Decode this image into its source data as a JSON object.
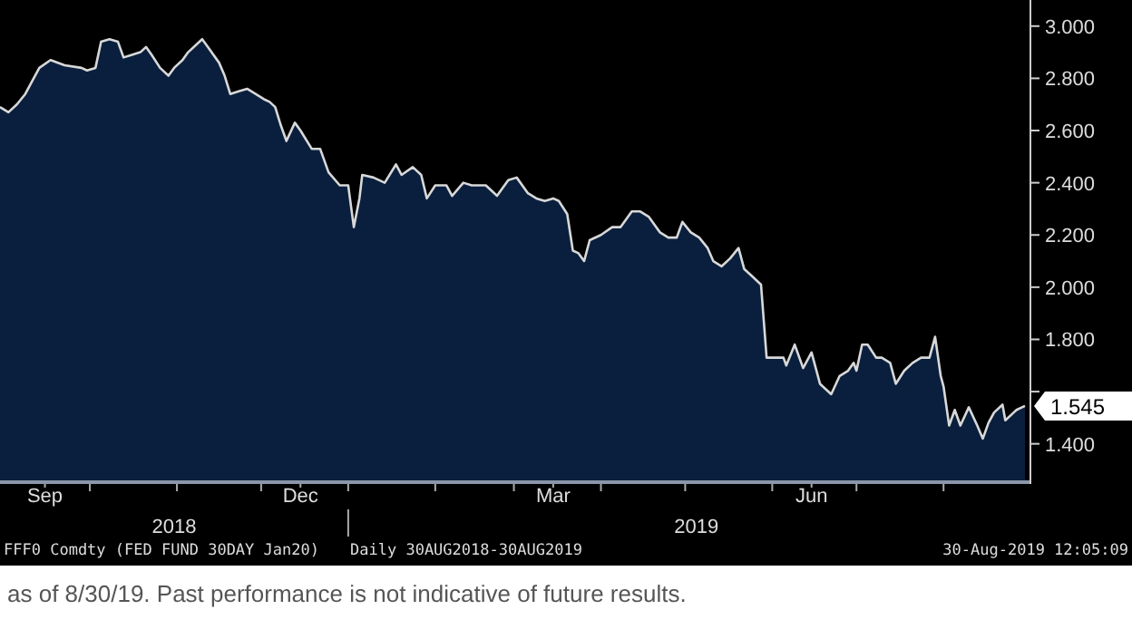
{
  "chart_data": {
    "type": "area",
    "x": [
      "2018-08-30",
      "2018-09-02",
      "2018-09-05",
      "2018-09-08",
      "2018-09-10",
      "2018-09-13",
      "2018-09-17",
      "2018-09-22",
      "2018-09-28",
      "2018-09-30",
      "2018-10-03",
      "2018-10-05",
      "2018-10-08",
      "2018-10-11",
      "2018-10-13",
      "2018-10-16",
      "2018-10-19",
      "2018-10-21",
      "2018-10-23",
      "2018-10-26",
      "2018-10-29",
      "2018-10-31",
      "2018-11-03",
      "2018-11-05",
      "2018-11-08",
      "2018-11-10",
      "2018-11-12",
      "2018-11-16",
      "2018-11-18",
      "2018-11-20",
      "2018-11-23",
      "2018-11-26",
      "2018-11-29",
      "2018-12-02",
      "2018-12-04",
      "2018-12-06",
      "2018-12-08",
      "2018-12-10",
      "2018-12-13",
      "2018-12-15",
      "2018-12-19",
      "2018-12-22",
      "2018-12-25",
      "2018-12-29",
      "2019-01-01",
      "2019-01-03",
      "2019-01-05",
      "2019-01-06",
      "2019-01-10",
      "2019-01-14",
      "2019-01-18",
      "2019-01-20",
      "2019-01-24",
      "2019-01-27",
      "2019-01-29",
      "2019-02-01",
      "2019-02-05",
      "2019-02-07",
      "2019-02-11",
      "2019-02-14",
      "2019-02-19",
      "2019-02-23",
      "2019-02-27",
      "2019-03-02",
      "2019-03-06",
      "2019-03-09",
      "2019-03-12",
      "2019-03-15",
      "2019-03-17",
      "2019-03-20",
      "2019-03-22",
      "2019-03-24",
      "2019-03-26",
      "2019-03-28",
      "2019-04-01",
      "2019-04-05",
      "2019-04-08",
      "2019-04-12",
      "2019-04-15",
      "2019-04-18",
      "2019-04-22",
      "2019-04-25",
      "2019-04-28",
      "2019-04-30",
      "2019-05-03",
      "2019-05-06",
      "2019-05-09",
      "2019-05-11",
      "2019-05-14",
      "2019-05-17",
      "2019-05-20",
      "2019-05-22",
      "2019-05-25",
      "2019-05-28",
      "2019-05-30",
      "2019-06-02",
      "2019-06-05",
      "2019-06-06",
      "2019-06-09",
      "2019-06-12",
      "2019-06-15",
      "2019-06-18",
      "2019-06-22",
      "2019-06-25",
      "2019-06-28",
      "2019-06-30",
      "2019-07-01",
      "2019-07-03",
      "2019-07-05",
      "2019-07-08",
      "2019-07-10",
      "2019-07-13",
      "2019-07-15",
      "2019-07-18",
      "2019-07-21",
      "2019-07-24",
      "2019-07-27",
      "2019-07-29",
      "2019-07-31",
      "2019-08-01",
      "2019-08-03",
      "2019-08-05",
      "2019-08-07",
      "2019-08-10",
      "2019-08-13",
      "2019-08-15",
      "2019-08-17",
      "2019-08-19",
      "2019-08-22",
      "2019-08-23",
      "2019-08-26",
      "2019-08-27",
      "2019-08-30"
    ],
    "series": [
      {
        "color": "#0a1f3d",
        "values": [
          2.69,
          2.67,
          2.7,
          2.74,
          2.78,
          2.84,
          2.87,
          2.85,
          2.84,
          2.83,
          2.84,
          2.94,
          2.95,
          2.94,
          2.88,
          2.89,
          2.9,
          2.92,
          2.89,
          2.84,
          2.81,
          2.84,
          2.87,
          2.9,
          2.93,
          2.95,
          2.92,
          2.86,
          2.81,
          2.74,
          2.75,
          2.76,
          2.74,
          2.72,
          2.71,
          2.69,
          2.62,
          2.56,
          2.63,
          2.6,
          2.53,
          2.53,
          2.44,
          2.39,
          2.39,
          2.23,
          2.34,
          2.43,
          2.42,
          2.4,
          2.47,
          2.43,
          2.46,
          2.43,
          2.34,
          2.39,
          2.39,
          2.35,
          2.4,
          2.39,
          2.39,
          2.35,
          2.41,
          2.42,
          2.36,
          2.34,
          2.33,
          2.34,
          2.33,
          2.28,
          2.14,
          2.13,
          2.1,
          2.18,
          2.2,
          2.23,
          2.23,
          2.29,
          2.29,
          2.27,
          2.21,
          2.19,
          2.19,
          2.25,
          2.21,
          2.19,
          2.15,
          2.1,
          2.08,
          2.11,
          2.15,
          2.07,
          2.04,
          2.01,
          1.73,
          1.73,
          1.73,
          1.7,
          1.78,
          1.69,
          1.75,
          1.63,
          1.59,
          1.66,
          1.68,
          1.71,
          1.68,
          1.78,
          1.78,
          1.73,
          1.73,
          1.71,
          1.63,
          1.68,
          1.71,
          1.73,
          1.73,
          1.81,
          1.66,
          1.62,
          1.47,
          1.53,
          1.47,
          1.54,
          1.47,
          1.42,
          1.48,
          1.52,
          1.55,
          1.49,
          1.52,
          1.53,
          1.545
        ]
      }
    ],
    "xlim": [
      "2018-08-30",
      "2019-08-30"
    ],
    "xticks": [
      {
        "value": "2018-09-15",
        "label": "Sep"
      },
      {
        "value": "2018-12-15",
        "label": "Dec"
      },
      {
        "value": "2019-03-15",
        "label": "Mar"
      },
      {
        "value": "2019-06-15",
        "label": "Jun"
      },
      {
        "value": "2018-10-01",
        "label": null
      },
      {
        "value": "2018-11-01",
        "label": null
      },
      {
        "value": "2018-12-01",
        "label": null
      },
      {
        "value": "2019-01-01",
        "label": null
      },
      {
        "value": "2019-02-01",
        "label": null
      },
      {
        "value": "2019-03-01",
        "label": null
      },
      {
        "value": "2019-04-01",
        "label": null
      },
      {
        "value": "2019-05-01",
        "label": null
      },
      {
        "value": "2019-06-01",
        "label": null
      },
      {
        "value": "2019-07-01",
        "label": null
      },
      {
        "value": "2019-08-01",
        "label": null
      }
    ],
    "ylim": [
      1.26,
      3.1
    ],
    "yticks": [
      {
        "value": 1.4,
        "label": "1.400"
      },
      {
        "value": 1.6,
        "label": null
      },
      {
        "value": 1.8,
        "label": "1.800"
      },
      {
        "value": 2.0,
        "label": "2.000"
      },
      {
        "value": 2.2,
        "label": "2.200"
      },
      {
        "value": 2.4,
        "label": "2.400"
      },
      {
        "value": 2.6,
        "label": "2.600"
      },
      {
        "value": 2.8,
        "label": "2.800"
      },
      {
        "value": 3.0,
        "label": "3.000"
      }
    ],
    "x2lim": [
      "2018-08-30",
      "2019-08-30"
    ],
    "x2ticks": [
      {
        "value": "2018-10-31",
        "label": "2018"
      },
      {
        "value": "2019-01-01",
        "label": null
      },
      {
        "value": "2019-05-05",
        "label": "2019"
      }
    ],
    "grid": false,
    "annotations": [
      {
        "text": "1.545",
        "x": "2019-08-30",
        "y": 1.545
      },
      "FFF0 Comdty (FED FUND 30DAY  Jan20)",
      "Daily 30AUG2018-30AUG2019",
      "30-Aug-2019 12:05:09",
      "as of 8/30/19. Past performance is not indicative of future results."
    ]
  }
}
